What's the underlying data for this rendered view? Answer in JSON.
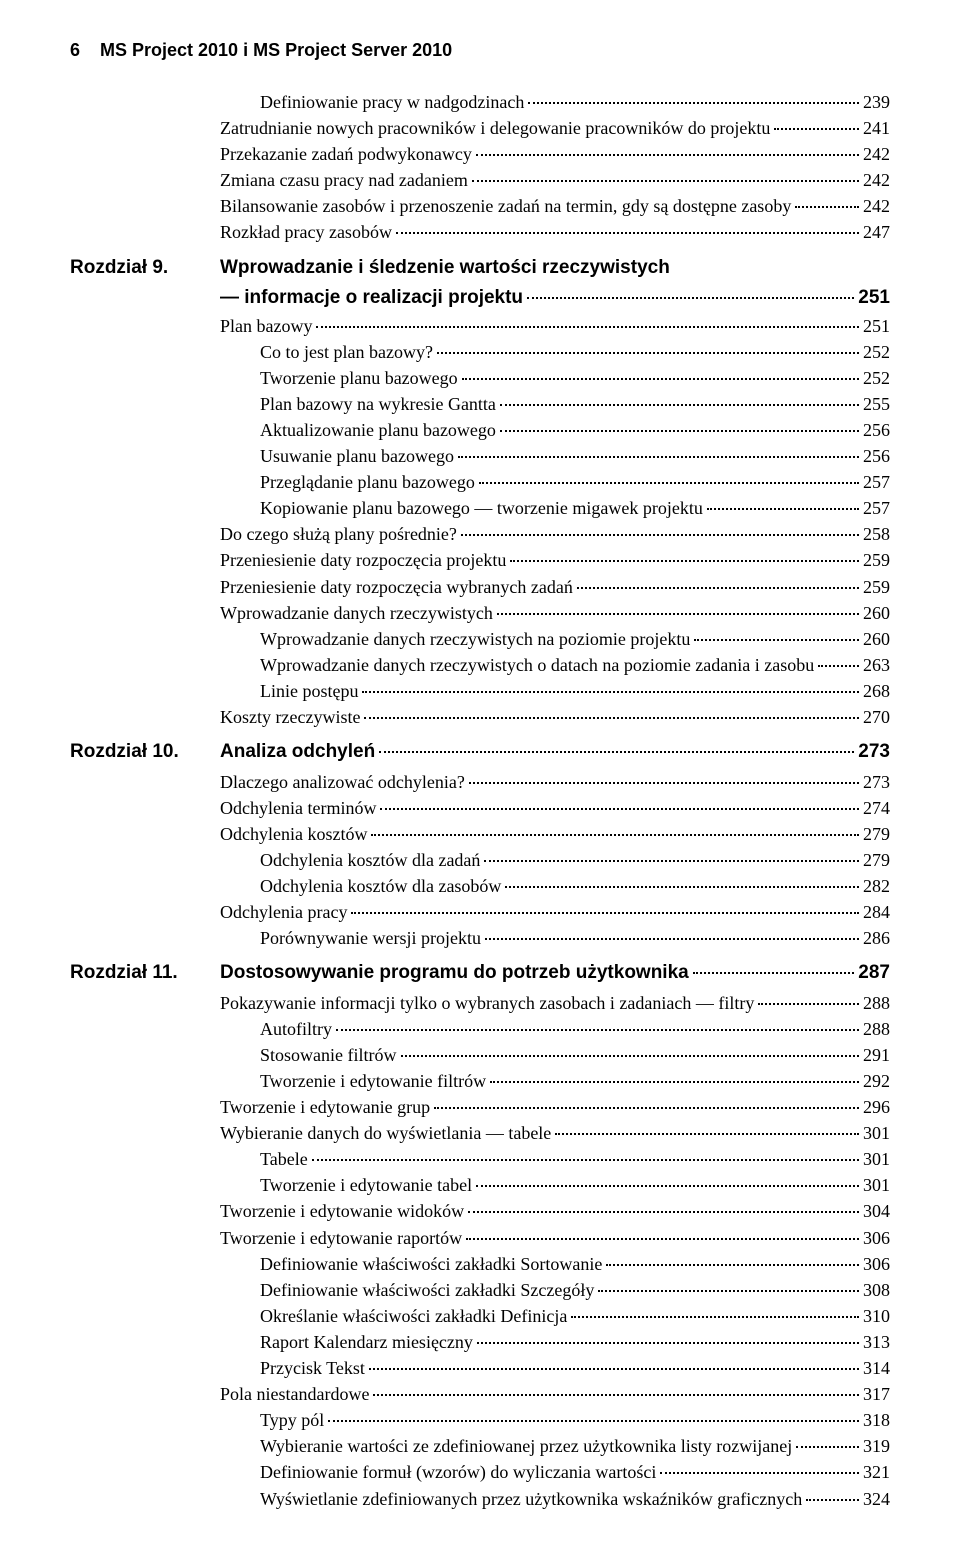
{
  "page_number": "6",
  "header_title": "MS Project 2010 i MS Project Server 2010",
  "lines": [
    {
      "kind": "entry",
      "indent": 1,
      "text": "Definiowanie pracy w nadgodzinach",
      "page": "239"
    },
    {
      "kind": "entry",
      "indent": 0,
      "text": "Zatrudnianie nowych pracowników i delegowanie pracowników do projektu",
      "page": "241"
    },
    {
      "kind": "entry",
      "indent": 0,
      "text": "Przekazanie zadań podwykonawcy",
      "page": "242"
    },
    {
      "kind": "entry",
      "indent": 0,
      "text": "Zmiana czasu pracy nad zadaniem",
      "page": "242"
    },
    {
      "kind": "entry",
      "indent": 0,
      "text": "Bilansowanie zasobów i przenoszenie zadań na termin, gdy są dostępne zasoby",
      "page": "242"
    },
    {
      "kind": "entry",
      "indent": 0,
      "text": "Rozkład pracy zasobów",
      "page": "247"
    },
    {
      "kind": "chapter",
      "label": "Rozdział 9.",
      "text": "Wprowadzanie i śledzenie wartości rzeczywistych",
      "cont": "— informacje o realizacji projektu",
      "page": "251"
    },
    {
      "kind": "entry",
      "indent": 0,
      "text": "Plan bazowy",
      "page": "251"
    },
    {
      "kind": "entry",
      "indent": 1,
      "text": "Co to jest plan bazowy?",
      "page": "252"
    },
    {
      "kind": "entry",
      "indent": 1,
      "text": "Tworzenie planu bazowego",
      "page": "252"
    },
    {
      "kind": "entry",
      "indent": 1,
      "text": "Plan bazowy na wykresie Gantta",
      "page": "255"
    },
    {
      "kind": "entry",
      "indent": 1,
      "text": "Aktualizowanie planu bazowego",
      "page": "256"
    },
    {
      "kind": "entry",
      "indent": 1,
      "text": "Usuwanie planu bazowego",
      "page": "256"
    },
    {
      "kind": "entry",
      "indent": 1,
      "text": "Przeglądanie planu bazowego",
      "page": "257"
    },
    {
      "kind": "entry",
      "indent": 1,
      "text": "Kopiowanie planu bazowego — tworzenie migawek projektu",
      "page": "257"
    },
    {
      "kind": "entry",
      "indent": 0,
      "text": "Do czego służą plany pośrednie?",
      "page": "258"
    },
    {
      "kind": "entry",
      "indent": 0,
      "text": "Przeniesienie daty rozpoczęcia projektu",
      "page": "259"
    },
    {
      "kind": "entry",
      "indent": 0,
      "text": "Przeniesienie daty rozpoczęcia wybranych zadań",
      "page": "259"
    },
    {
      "kind": "entry",
      "indent": 0,
      "text": "Wprowadzanie danych rzeczywistych",
      "page": "260"
    },
    {
      "kind": "entry",
      "indent": 1,
      "text": "Wprowadzanie danych rzeczywistych na poziomie projektu",
      "page": "260"
    },
    {
      "kind": "entry",
      "indent": 1,
      "text": "Wprowadzanie danych rzeczywistych o datach na poziomie zadania i zasobu",
      "page": "263"
    },
    {
      "kind": "entry",
      "indent": 1,
      "text": "Linie postępu",
      "page": "268"
    },
    {
      "kind": "entry",
      "indent": 0,
      "text": "Koszty rzeczywiste",
      "page": "270"
    },
    {
      "kind": "chapter",
      "label": "Rozdział 10.",
      "text": "Analiza odchyleń",
      "page": "273"
    },
    {
      "kind": "entry",
      "indent": 0,
      "text": "Dlaczego analizować odchylenia?",
      "page": "273"
    },
    {
      "kind": "entry",
      "indent": 0,
      "text": "Odchylenia terminów",
      "page": "274"
    },
    {
      "kind": "entry",
      "indent": 0,
      "text": "Odchylenia kosztów",
      "page": "279"
    },
    {
      "kind": "entry",
      "indent": 1,
      "text": "Odchylenia kosztów dla zadań",
      "page": "279"
    },
    {
      "kind": "entry",
      "indent": 1,
      "text": "Odchylenia kosztów dla zasobów",
      "page": "282"
    },
    {
      "kind": "entry",
      "indent": 0,
      "text": "Odchylenia pracy",
      "page": "284"
    },
    {
      "kind": "entry",
      "indent": 1,
      "text": "Porównywanie wersji projektu",
      "page": "286"
    },
    {
      "kind": "chapter",
      "label": "Rozdział 11.",
      "text": "Dostosowywanie programu do potrzeb użytkownika",
      "page": "287"
    },
    {
      "kind": "entry",
      "indent": 0,
      "text": "Pokazywanie informacji tylko o wybranych zasobach i zadaniach — filtry",
      "page": "288"
    },
    {
      "kind": "entry",
      "indent": 1,
      "text": "Autofiltry",
      "page": "288"
    },
    {
      "kind": "entry",
      "indent": 1,
      "text": "Stosowanie filtrów",
      "page": "291"
    },
    {
      "kind": "entry",
      "indent": 1,
      "text": "Tworzenie i edytowanie filtrów",
      "page": "292"
    },
    {
      "kind": "entry",
      "indent": 0,
      "text": "Tworzenie i edytowanie grup",
      "page": "296"
    },
    {
      "kind": "entry",
      "indent": 0,
      "text": "Wybieranie danych do wyświetlania — tabele",
      "page": "301"
    },
    {
      "kind": "entry",
      "indent": 1,
      "text": "Tabele",
      "page": "301"
    },
    {
      "kind": "entry",
      "indent": 1,
      "text": "Tworzenie i edytowanie tabel",
      "page": "301"
    },
    {
      "kind": "entry",
      "indent": 0,
      "text": "Tworzenie i edytowanie widoków",
      "page": "304"
    },
    {
      "kind": "entry",
      "indent": 0,
      "text": "Tworzenie i edytowanie raportów",
      "page": "306"
    },
    {
      "kind": "entry",
      "indent": 1,
      "text": "Definiowanie właściwości zakładki Sortowanie",
      "page": "306"
    },
    {
      "kind": "entry",
      "indent": 1,
      "text": "Definiowanie właściwości zakładki Szczegóły",
      "page": "308"
    },
    {
      "kind": "entry",
      "indent": 1,
      "text": "Określanie właściwości zakładki Definicja",
      "page": "310"
    },
    {
      "kind": "entry",
      "indent": 1,
      "text": "Raport Kalendarz miesięczny",
      "page": "313"
    },
    {
      "kind": "entry",
      "indent": 1,
      "text": "Przycisk Tekst",
      "page": "314"
    },
    {
      "kind": "entry",
      "indent": 0,
      "text": "Pola niestandardowe",
      "page": "317"
    },
    {
      "kind": "entry",
      "indent": 1,
      "text": "Typy pól",
      "page": "318"
    },
    {
      "kind": "entry",
      "indent": 1,
      "text": "Wybieranie wartości ze zdefiniowanej przez użytkownika listy rozwijanej",
      "page": "319"
    },
    {
      "kind": "entry",
      "indent": 1,
      "text": "Definiowanie formuł (wzorów) do wyliczania wartości",
      "page": "321"
    },
    {
      "kind": "entry",
      "indent": 1,
      "text": "Wyświetlanie zdefiniowanych przez użytkownika wskaźników graficznych",
      "page": "324"
    }
  ]
}
